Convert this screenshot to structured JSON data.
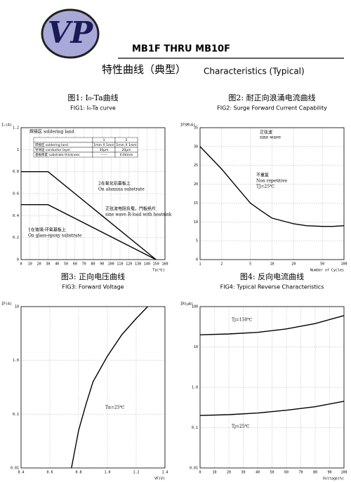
{
  "header": {
    "logo": "VP",
    "part": "MB1F THRU MB10F",
    "title_cn": "特性曲线（典型）",
    "title_en": "Characteristics (Typical)"
  },
  "chart_data": [
    {
      "type": "line",
      "title": "图1: I₀-Ta曲线",
      "subtitle": "FIG1: I₀-Ta curve",
      "ylabel": "I₀(A)",
      "xlabel": "Ta(℃)",
      "x": [
        0,
        30,
        150
      ],
      "series": [
        {
          "color": "#000000",
          "values": [
            0.8,
            0.8,
            0
          ]
        },
        {
          "color": "#000000",
          "values": [
            0.5,
            0.5,
            0
          ]
        }
      ],
      "xlim": [
        0,
        160
      ],
      "ylim": [
        0,
        1.2
      ],
      "xticks": [
        0,
        10,
        20,
        30,
        40,
        50,
        60,
        70,
        80,
        90,
        100,
        110,
        120,
        130,
        140,
        150,
        160
      ],
      "yticks": [
        0,
        0.2,
        0.4,
        0.6,
        0.8,
        1.0,
        1.2
      ],
      "annotations": [
        "2在氧化铝基板上",
        "On alumina substrate",
        "1在玻璃-环氧基板上",
        "On glass-epoxy substrate",
        "正弦波电阻负载，門板绝片",
        "sine wave R-load with heatsink"
      ],
      "table": {
        "caption": "焊接区  soldering land",
        "rows": [
          [
            "",
            "1",
            "2"
          ],
          [
            "焊接区  soldering land",
            "1mm X 1mm",
            "1mm X 1mm"
          ],
          [
            "导体层  conductor layer",
            "30μm",
            "20μm"
          ],
          [
            "基板厚度  substrate thickness",
            "------",
            "0.64mm"
          ]
        ]
      }
    },
    {
      "type": "line",
      "title": "图2: 耐正向浪涌电流曲线",
      "subtitle": "FIG2: Surge Forward Current Capability",
      "ylabel": "IFSM(A)",
      "xlabel": "Number of Cycles",
      "xlog": true,
      "x": [
        1,
        2,
        3,
        5,
        7,
        10,
        20,
        30,
        50,
        70,
        100
      ],
      "series": [
        {
          "color": "#000000",
          "values": [
            30,
            24,
            20,
            15,
            13,
            11,
            9.5,
            9,
            8.8,
            8.8,
            9
          ]
        }
      ],
      "xlim": [
        1,
        100
      ],
      "ylim": [
        0,
        35
      ],
      "xticks": [
        1,
        2,
        5,
        10,
        20,
        50,
        100
      ],
      "yticks": [
        0,
        5,
        10,
        15,
        20,
        25,
        30,
        35
      ],
      "annotations": [
        "正弦波",
        "sine wave",
        "不重复",
        "Non repetitive",
        "TJ=25℃"
      ]
    },
    {
      "type": "line",
      "title": "图3: 正向电压曲线",
      "subtitle": "FIG3: Forward Voltage",
      "ylabel": "IF(A)",
      "xlabel": "VF(V)",
      "ylog": true,
      "x": [
        0.75,
        0.8,
        0.85,
        0.9,
        1.0,
        1.1,
        1.2,
        1.28
      ],
      "series": [
        {
          "color": "#000000",
          "values": [
            0.01,
            0.05,
            0.15,
            0.4,
            1.2,
            3,
            6,
            10
          ]
        }
      ],
      "xlim": [
        0.4,
        1.4
      ],
      "ylim": [
        0.01,
        10
      ],
      "xticks": [
        0.4,
        0.6,
        0.8,
        {
          "value": 1,
          "label": "1.0"
        },
        1.2,
        1.4
      ],
      "yticks": [
        0.01,
        0.1,
        {
          "value": 1,
          "label": "1.0"
        },
        10
      ],
      "annotations": [
        "Tn=25℃"
      ]
    },
    {
      "type": "line",
      "title": "图4: 反向电流曲线",
      "subtitle": "FIG4: Typical Reverse Characteristics",
      "ylabel": "IR(μA)",
      "xlabel": "Voltage(%)",
      "ylog": true,
      "x": [
        0,
        20,
        40,
        60,
        80,
        100
      ],
      "series": [
        {
          "color": "#000000",
          "values": [
            20,
            21,
            23,
            28,
            38,
            60
          ]
        },
        {
          "color": "#000000",
          "values": [
            0.2,
            0.21,
            0.23,
            0.27,
            0.33,
            0.45
          ]
        }
      ],
      "xlim": [
        0,
        100
      ],
      "ylim": [
        0.01,
        100
      ],
      "xticks": [
        0,
        10,
        20,
        30,
        40,
        50,
        60,
        70,
        80,
        90,
        100
      ],
      "yticks": [
        0.01,
        0.1,
        {
          "value": 1,
          "label": "1.0"
        },
        10,
        100
      ],
      "annotations": [
        "Tj=150℃",
        "Tj=25℃"
      ]
    }
  ]
}
